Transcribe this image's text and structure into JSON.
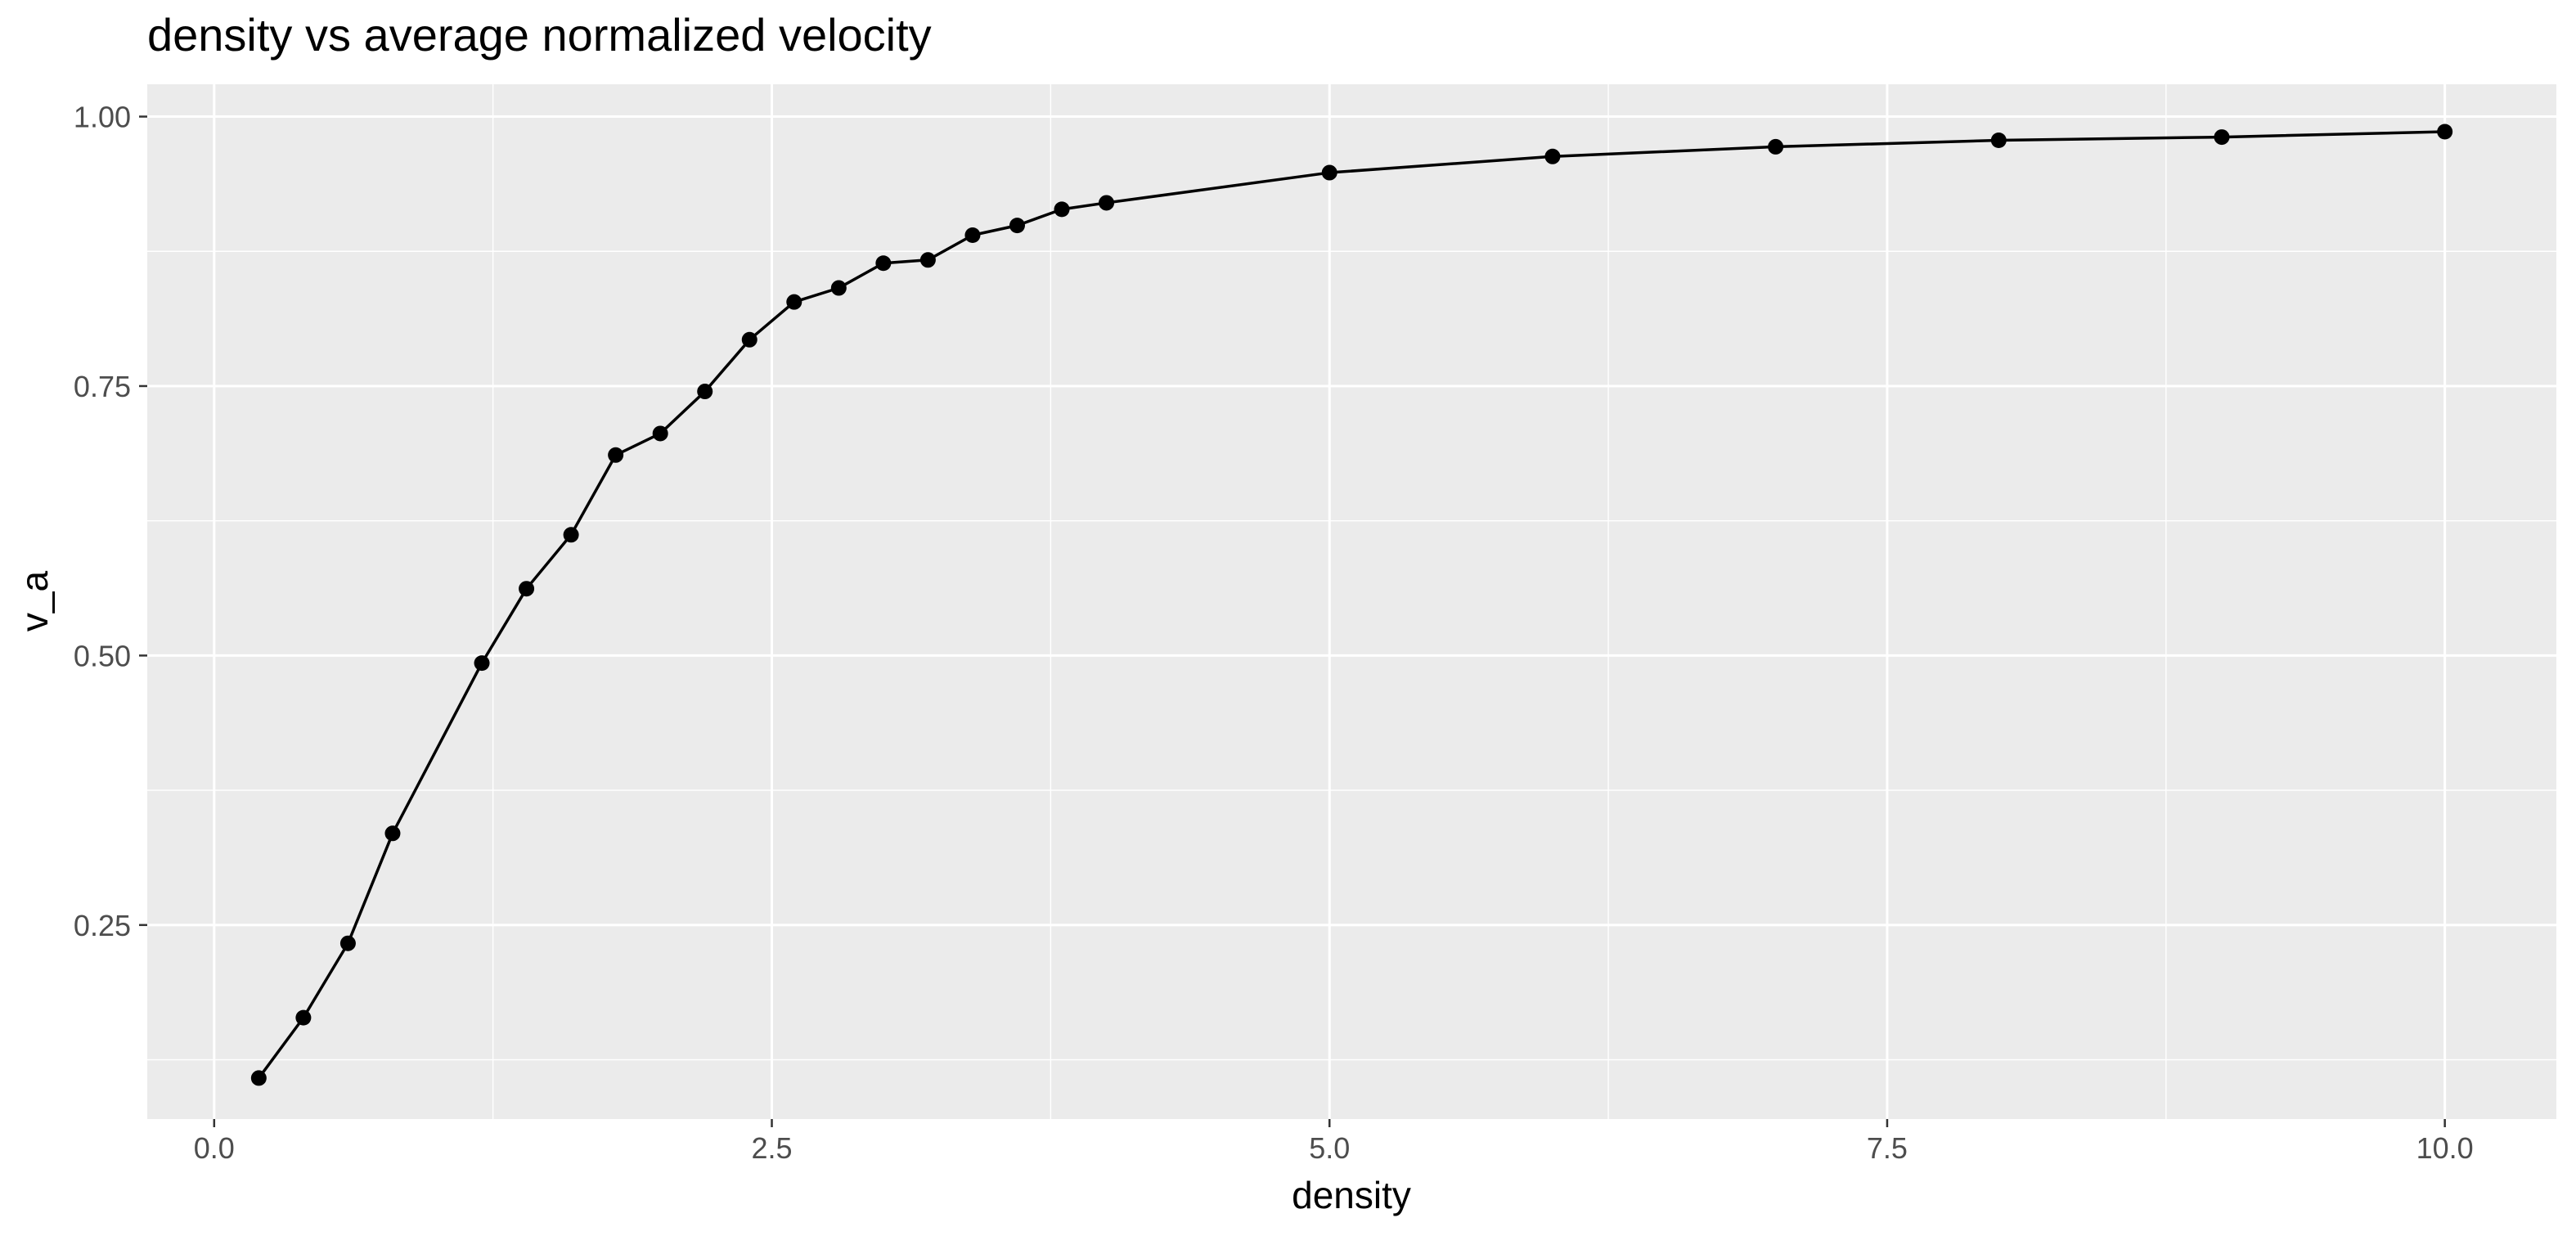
{
  "chart_data": {
    "type": "line",
    "title": "density vs average normalized velocity",
    "xlabel": "density",
    "ylabel": "v_a",
    "xlim": [
      -0.3,
      10.5
    ],
    "ylim": [
      0.07,
      1.03
    ],
    "x_ticks": [
      0.0,
      2.5,
      5.0,
      7.5,
      10.0
    ],
    "x_tick_labels": [
      "0.0",
      "2.5",
      "5.0",
      "7.5",
      "10.0"
    ],
    "y_ticks": [
      0.25,
      0.5,
      0.75,
      1.0
    ],
    "y_tick_labels": [
      "0.25",
      "0.50",
      "0.75",
      "1.00"
    ],
    "grid": true,
    "colors": {
      "panel": "#ebebeb",
      "grid": "#ffffff",
      "series": "#000000",
      "tick_text": "#4d4d4d",
      "axis_title": "#000000"
    },
    "series": [
      {
        "name": "v_a",
        "x": [
          0.2,
          0.4,
          0.6,
          0.8,
          1.2,
          1.4,
          1.6,
          1.8,
          2.0,
          2.2,
          2.4,
          2.6,
          2.8,
          3.0,
          3.2,
          3.4,
          3.6,
          3.8,
          4.0,
          5.0,
          6.0,
          7.0,
          8.0,
          9.0,
          10.0
        ],
        "y": [
          0.108,
          0.164,
          0.233,
          0.335,
          0.493,
          0.562,
          0.612,
          0.686,
          0.706,
          0.745,
          0.793,
          0.828,
          0.841,
          0.864,
          0.867,
          0.89,
          0.899,
          0.914,
          0.92,
          0.948,
          0.963,
          0.972,
          0.978,
          0.981,
          0.986
        ]
      }
    ]
  }
}
